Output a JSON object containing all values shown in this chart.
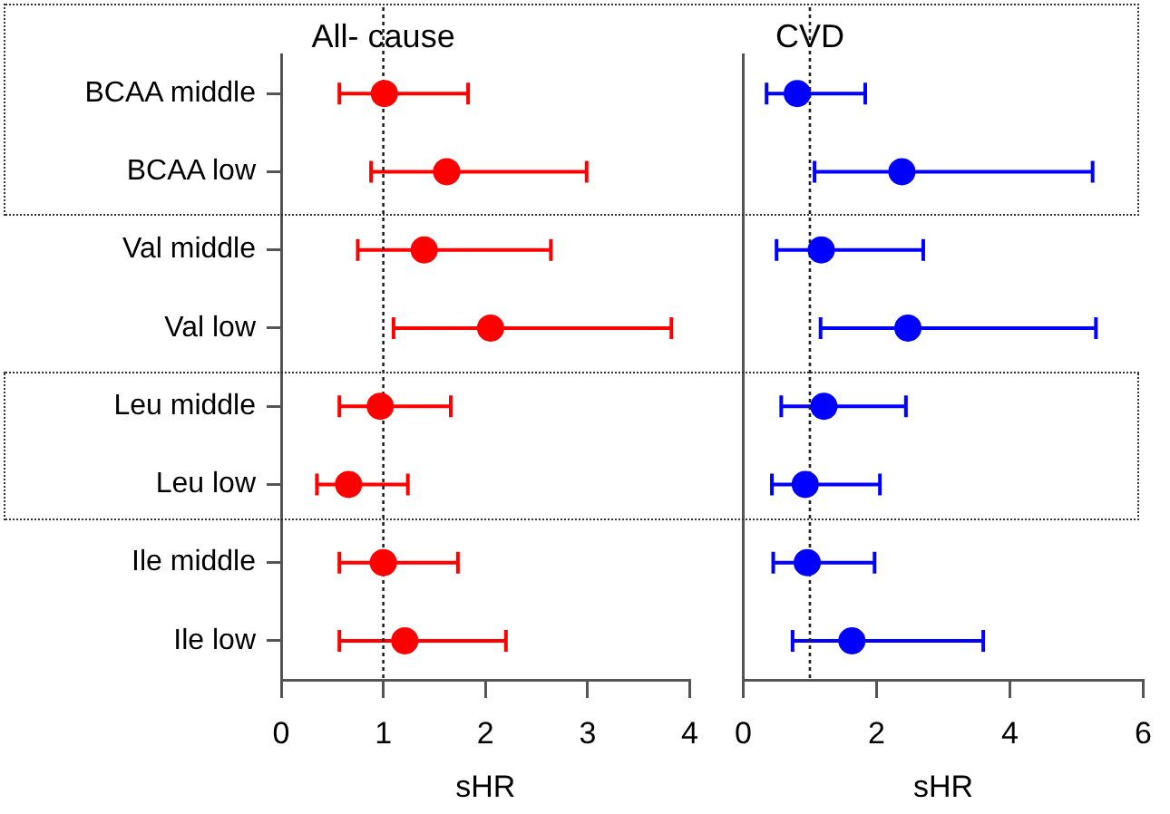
{
  "chart_data": [
    {
      "type": "scatter",
      "orientation": "horizontal",
      "title": "All- cause",
      "xlabel": "sHR",
      "categories": [
        "BCAA middle",
        "BCAA low",
        "Val middle",
        "Val low",
        "Leu middle",
        "Leu low",
        "Ile middle",
        "Ile low"
      ],
      "series": [
        {
          "color": "#ff0000",
          "values": [
            1.01,
            1.62,
            1.4,
            2.05,
            0.97,
            0.66,
            1.0,
            1.21
          ],
          "errors": [
            [
              0.57,
              1.83
            ],
            [
              0.88,
              2.99
            ],
            [
              0.75,
              2.64
            ],
            [
              1.1,
              3.82
            ],
            [
              0.57,
              1.66
            ],
            [
              0.35,
              1.24
            ],
            [
              0.57,
              1.73
            ],
            [
              0.57,
              2.2
            ]
          ]
        }
      ],
      "xlim": [
        0,
        4
      ],
      "xticks": [
        0,
        1,
        2,
        3,
        4
      ],
      "ref_lines": [
        {
          "axis": "x",
          "value": 1,
          "line_style": "dotted"
        }
      ],
      "marker": "circle",
      "grid": false,
      "legend": false
    },
    {
      "type": "scatter",
      "orientation": "horizontal",
      "title": "CVD",
      "xlabel": "sHR",
      "categories": [
        null,
        null,
        null,
        null,
        null,
        null,
        null,
        null
      ],
      "series": [
        {
          "color": "#0000ff",
          "values": [
            0.81,
            2.38,
            1.17,
            2.47,
            1.21,
            0.93,
            0.96,
            1.63
          ],
          "errors": [
            [
              0.35,
              1.83
            ],
            [
              1.07,
              5.24
            ],
            [
              0.5,
              2.7
            ],
            [
              1.16,
              5.29
            ],
            [
              0.57,
              2.44
            ],
            [
              0.43,
              2.05
            ],
            [
              0.45,
              1.97
            ],
            [
              0.74,
              3.6
            ]
          ]
        }
      ],
      "xlim": [
        0,
        6
      ],
      "xticks": [
        0,
        2,
        4,
        6
      ],
      "tick_labels": "x",
      "ref_lines": [
        {
          "axis": "x",
          "value": 1,
          "line_style": "dotted"
        }
      ],
      "marker": "circle",
      "grid": false,
      "legend": false
    }
  ]
}
